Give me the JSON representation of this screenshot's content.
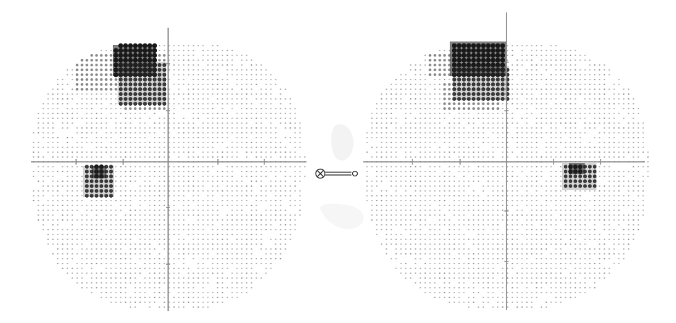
{
  "colors": {
    "background": "#ffffff",
    "axis": "#8a8a8a",
    "dot_light": "#b8b8b8",
    "dot_mid": "#8c8c8c",
    "dot_dark": "#3c3c3c",
    "dot_darkest": "#1a1a1a"
  },
  "fields": [
    {
      "name": "left-eye-field",
      "defects": [
        {
          "name": "upper-nasal-dense-scotoma",
          "level": 0.9
        },
        {
          "name": "upper-nasal-medium-scotoma",
          "level": 0.55
        },
        {
          "name": "lower-nasal-scotoma",
          "level": 0.8
        }
      ]
    },
    {
      "name": "right-eye-field",
      "defects": [
        {
          "name": "upper-central-dense-scotoma",
          "level": 0.9
        },
        {
          "name": "upper-central-medium-scotoma",
          "level": 0.55
        },
        {
          "name": "blind-spot-scotoma",
          "level": 0.7
        }
      ]
    }
  ],
  "connector": {
    "left_symbol": "cross-circle-icon",
    "right_symbol": "open-circle-icon"
  }
}
